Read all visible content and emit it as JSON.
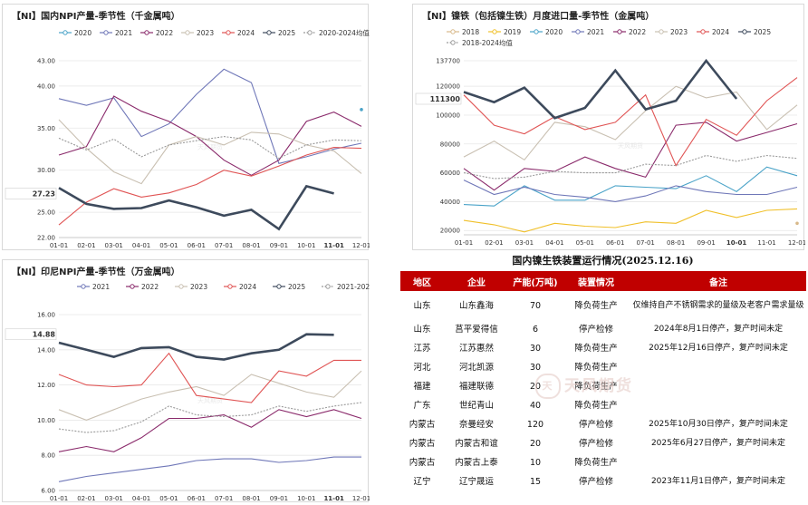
{
  "charts": [
    {
      "title": "【NI】国内NPI产量-季节性（千金属吨）",
      "legend": [
        "2020",
        "2021",
        "2022",
        "2023",
        "2024",
        "2025",
        "2020-2024均值"
      ],
      "colors": [
        "#4aa3c8",
        "#6f77b8",
        "#8a2a6b",
        "#c9c0b2",
        "#e05454",
        "#3d4a5c",
        "#9a9a9a"
      ],
      "x_ticks": [
        "01-01",
        "02-01",
        "03-01",
        "04-01",
        "05-01",
        "06-01",
        "07-01",
        "08-01",
        "09-01",
        "10-01",
        "11-01",
        "12-01"
      ],
      "bold_tick": "11-01",
      "y_ticks": [
        "22.00",
        "25.00",
        "30.00",
        "35.00",
        "40.00",
        "43.00"
      ],
      "callout": "27.23",
      "chart_data": {
        "type": "line",
        "x": [
          "01-01",
          "02-01",
          "03-01",
          "04-01",
          "05-01",
          "06-01",
          "07-01",
          "08-01",
          "09-01",
          "10-01",
          "11-01",
          "12-01"
        ],
        "ylim": [
          22,
          43
        ],
        "series": [
          {
            "name": "2020",
            "values": [
              null,
              null,
              null,
              null,
              null,
              null,
              null,
              null,
              null,
              null,
              null,
              37.2
            ]
          },
          {
            "name": "2021",
            "values": [
              38.5,
              37.7,
              38.6,
              34.0,
              35.5,
              39.0,
              42.0,
              40.4,
              30.8,
              31.6,
              32.5,
              33.2
            ]
          },
          {
            "name": "2022",
            "values": [
              31.8,
              32.8,
              38.8,
              37.0,
              35.8,
              34.0,
              31.2,
              29.4,
              31.2,
              35.8,
              36.9,
              35.2
            ]
          },
          {
            "name": "2023",
            "values": [
              36.0,
              32.6,
              29.8,
              28.4,
              33.0,
              34.0,
              33.0,
              34.5,
              34.3,
              33.0,
              32.3,
              29.6
            ]
          },
          {
            "name": "2024",
            "values": [
              23.5,
              26.2,
              27.8,
              26.8,
              27.3,
              28.3,
              30.0,
              29.3,
              30.5,
              31.8,
              32.7,
              32.6
            ]
          },
          {
            "name": "2025",
            "values": [
              27.9,
              26.0,
              25.4,
              25.5,
              26.4,
              25.6,
              24.6,
              25.3,
              23.0,
              28.1,
              27.23,
              null
            ]
          },
          {
            "name": "2020-2024均值",
            "values": [
              33.8,
              32.4,
              33.7,
              31.6,
              33.0,
              33.5,
              34.0,
              33.6,
              31.4,
              33.0,
              33.6,
              33.5
            ]
          }
        ]
      }
    },
    {
      "title": "【NI】镍铁（包括镍生铁）月度进口量-季节性（金属吨）",
      "legend": [
        "2018",
        "2019",
        "2020",
        "2021",
        "2022",
        "2023",
        "2024",
        "2025",
        "2018-2024均值"
      ],
      "colors": [
        "#d8b98a",
        "#f0c02a",
        "#4aa3c8",
        "#6f77b8",
        "#8a2a6b",
        "#c9c0b2",
        "#e05454",
        "#3d4a5c",
        "#9a9a9a"
      ],
      "x_ticks": [
        "01-01",
        "02-01",
        "03-01",
        "04-01",
        "05-01",
        "06-01",
        "07-01",
        "08-01",
        "09-01",
        "10-01",
        "11-01",
        "12-01"
      ],
      "bold_tick": "10-01",
      "y_ticks": [
        "20000",
        "40000",
        "60000",
        "80000",
        "100000",
        "120000",
        "137700"
      ],
      "callout": "111300",
      "chart_data": {
        "type": "line",
        "x": [
          "01-01",
          "02-01",
          "03-01",
          "04-01",
          "05-01",
          "06-01",
          "07-01",
          "08-01",
          "09-01",
          "10-01",
          "11-01",
          "12-01"
        ],
        "ylim": [
          17000,
          137700
        ],
        "series": [
          {
            "name": "2018",
            "values": [
              null,
              null,
              null,
              null,
              null,
              null,
              null,
              null,
              null,
              null,
              null,
              25000
            ]
          },
          {
            "name": "2019",
            "values": [
              27000,
              24000,
              19000,
              25000,
              23000,
              22000,
              26000,
              25000,
              34000,
              29000,
              34000,
              35000
            ]
          },
          {
            "name": "2020",
            "values": [
              38000,
              37000,
              51000,
              41000,
              41000,
              51000,
              50000,
              49000,
              58000,
              47000,
              64000,
              58000
            ]
          },
          {
            "name": "2021",
            "values": [
              55000,
              45000,
              50000,
              45000,
              43000,
              40000,
              44000,
              51000,
              47000,
              45000,
              45000,
              50000
            ]
          },
          {
            "name": "2022",
            "values": [
              63000,
              48000,
              63000,
              61000,
              71000,
              63000,
              57000,
              93000,
              95000,
              82000,
              88000,
              94000
            ]
          },
          {
            "name": "2023",
            "values": [
              71000,
              82000,
              69000,
              95000,
              92000,
              83000,
              103000,
              120000,
              112000,
              116000,
              90000,
              107000
            ]
          },
          {
            "name": "2024",
            "values": [
              114000,
              93000,
              87000,
              99000,
              90000,
              95000,
              114000,
              65000,
              97000,
              86000,
              110000,
              126000
            ]
          },
          {
            "name": "2025",
            "values": [
              116000,
              109000,
              119000,
              98000,
              105000,
              131000,
              104000,
              110000,
              137700,
              111300,
              null,
              null
            ]
          },
          {
            "name": "2018-2024均值",
            "values": [
              60000,
              56000,
              57000,
              61000,
              60000,
              60000,
              66000,
              65000,
              72000,
              68000,
              72000,
              70000
            ]
          }
        ]
      }
    },
    {
      "title": "【NI】印尼NPI产量-季节性（万金属吨）",
      "legend": [
        "2021",
        "2022",
        "2023",
        "2024",
        "2025",
        "2021-2024均值"
      ],
      "colors": [
        "#6f77b8",
        "#8a2a6b",
        "#c9c0b2",
        "#e05454",
        "#3d4a5c",
        "#9a9a9a"
      ],
      "x_ticks": [
        "01-01",
        "02-01",
        "03-01",
        "04-01",
        "05-01",
        "06-01",
        "07-01",
        "08-01",
        "09-01",
        "10-01",
        "11-01",
        "12-01"
      ],
      "bold_tick": "11-01",
      "y_ticks": [
        "6.00",
        "8.00",
        "10.00",
        "12.00",
        "14.00",
        "16.00"
      ],
      "callout": "14.88",
      "chart_data": {
        "type": "line",
        "x": [
          "01-01",
          "02-01",
          "03-01",
          "04-01",
          "05-01",
          "06-01",
          "07-01",
          "08-01",
          "09-01",
          "10-01",
          "11-01",
          "12-01"
        ],
        "ylim": [
          6,
          16
        ],
        "series": [
          {
            "name": "2021",
            "values": [
              6.5,
              6.8,
              7.0,
              7.2,
              7.4,
              7.7,
              7.8,
              7.8,
              7.6,
              7.7,
              7.9,
              7.9
            ]
          },
          {
            "name": "2022",
            "values": [
              8.2,
              8.5,
              8.2,
              9.0,
              10.1,
              10.1,
              10.3,
              9.6,
              10.6,
              10.2,
              10.6,
              10.1
            ]
          },
          {
            "name": "2023",
            "values": [
              10.6,
              10.0,
              10.6,
              11.2,
              11.6,
              11.9,
              11.4,
              12.6,
              12.1,
              11.6,
              11.3,
              12.8
            ]
          },
          {
            "name": "2024",
            "values": [
              12.6,
              12.0,
              11.9,
              12.0,
              13.8,
              11.4,
              11.2,
              11.0,
              12.8,
              12.5,
              13.4,
              13.4
            ]
          },
          {
            "name": "2025",
            "values": [
              14.4,
              14.0,
              13.6,
              14.1,
              14.15,
              13.6,
              13.45,
              13.8,
              14.0,
              14.88,
              14.85,
              null
            ]
          },
          {
            "name": "2021-2024均值",
            "values": [
              9.5,
              9.3,
              9.4,
              9.9,
              10.8,
              10.3,
              10.2,
              10.3,
              10.8,
              10.5,
              10.8,
              11.0
            ]
          }
        ]
      }
    }
  ],
  "table": {
    "title": "国内镍生铁装置运行情况(2025.12.16)",
    "headers": [
      "地区",
      "企业",
      "产能(万吨)",
      "装置情况",
      "备注"
    ],
    "rows": [
      [
        "山东",
        "山东鑫海",
        "70",
        "降负荷生产",
        "仅维持自产不锈钢需求的量级及老客户需求量级"
      ],
      [
        "山东",
        "莒平爱得信",
        "6",
        "停产检修",
        "2024年8月1日停产，复产时间未定"
      ],
      [
        "江苏",
        "江苏惠然",
        "30",
        "降负荷生产",
        "2025年12月16日停产，复产时间未定"
      ],
      [
        "河北",
        "河北凯源",
        "30",
        "降负荷生产",
        ""
      ],
      [
        "福建",
        "福建联德",
        "20",
        "降负荷生产",
        ""
      ],
      [
        "广东",
        "世纪青山",
        "40",
        "降负荷生产",
        ""
      ],
      [
        "内蒙古",
        "奈曼经安",
        "120",
        "停产检修",
        "2025年10月30日停产，复产时间未定"
      ],
      [
        "内蒙古",
        "内蒙古和谊",
        "20",
        "停产检修",
        "2025年6月27日停产，复产时间未定"
      ],
      [
        "内蒙古",
        "内蒙古上泰",
        "10",
        "降负荷生产",
        ""
      ],
      [
        "辽宁",
        "辽宁晟运",
        "15",
        "停产检修",
        "2023年11月1日停产，复产时间未定"
      ]
    ],
    "watermark": "天风期货"
  },
  "chart_watermark": "天风期货"
}
